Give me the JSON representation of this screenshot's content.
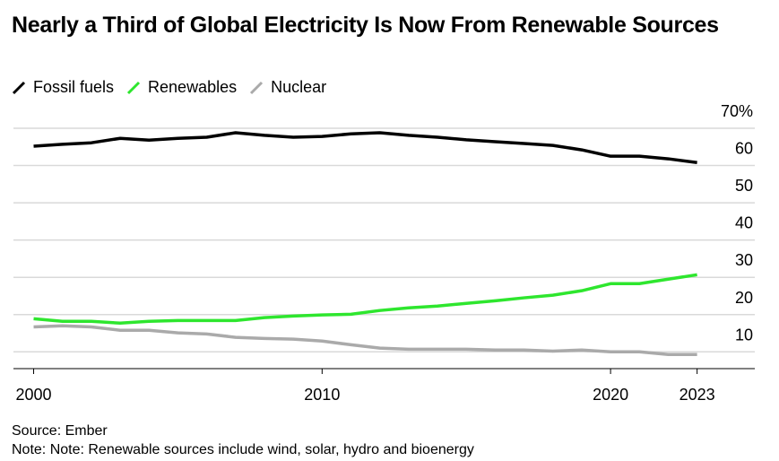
{
  "chart_data": {
    "type": "line",
    "title": "Nearly a Third of Global Electricity Is Now From Renewable Sources",
    "x": [
      2000,
      2001,
      2002,
      2003,
      2004,
      2005,
      2006,
      2007,
      2008,
      2009,
      2010,
      2011,
      2012,
      2013,
      2014,
      2015,
      2016,
      2017,
      2018,
      2019,
      2020,
      2021,
      2022,
      2023
    ],
    "series": [
      {
        "name": "Fossil fuels",
        "color": "#000000",
        "values": [
          65.2,
          65.7,
          66.1,
          67.3,
          66.8,
          67.3,
          67.6,
          68.8,
          68.1,
          67.6,
          67.8,
          68.5,
          68.8,
          68.1,
          67.6,
          66.9,
          66.4,
          65.9,
          65.4,
          64.2,
          62.5,
          62.5,
          61.8,
          60.8
        ]
      },
      {
        "name": "Renewables",
        "color": "#2ee62e",
        "values": [
          18.9,
          18.2,
          18.2,
          17.7,
          18.2,
          18.4,
          18.4,
          18.4,
          19.2,
          19.6,
          19.9,
          20.1,
          21.1,
          21.8,
          22.3,
          23.0,
          23.7,
          24.5,
          25.2,
          26.4,
          28.3,
          28.3,
          29.5,
          30.7
        ]
      },
      {
        "name": "Nuclear",
        "color": "#aaaaaa",
        "values": [
          16.7,
          17.0,
          16.7,
          15.8,
          15.8,
          15.1,
          14.8,
          13.9,
          13.6,
          13.4,
          12.9,
          11.9,
          11.0,
          10.7,
          10.7,
          10.7,
          10.5,
          10.5,
          10.2,
          10.5,
          10.0,
          10.0,
          9.3,
          9.3
        ]
      }
    ],
    "xlim": [
      1999.3,
      2025
    ],
    "xticks": [
      2000,
      2010,
      2020,
      2023
    ],
    "ylim": [
      5.5,
      70
    ],
    "yticks": [
      10,
      20,
      30,
      40,
      50,
      60,
      {
        "value": 70,
        "label": "70%"
      }
    ],
    "grid": true,
    "source": "Source: Ember",
    "note": "Note: Note: Renewable sources include wind, solar, hydro and bioenergy"
  }
}
